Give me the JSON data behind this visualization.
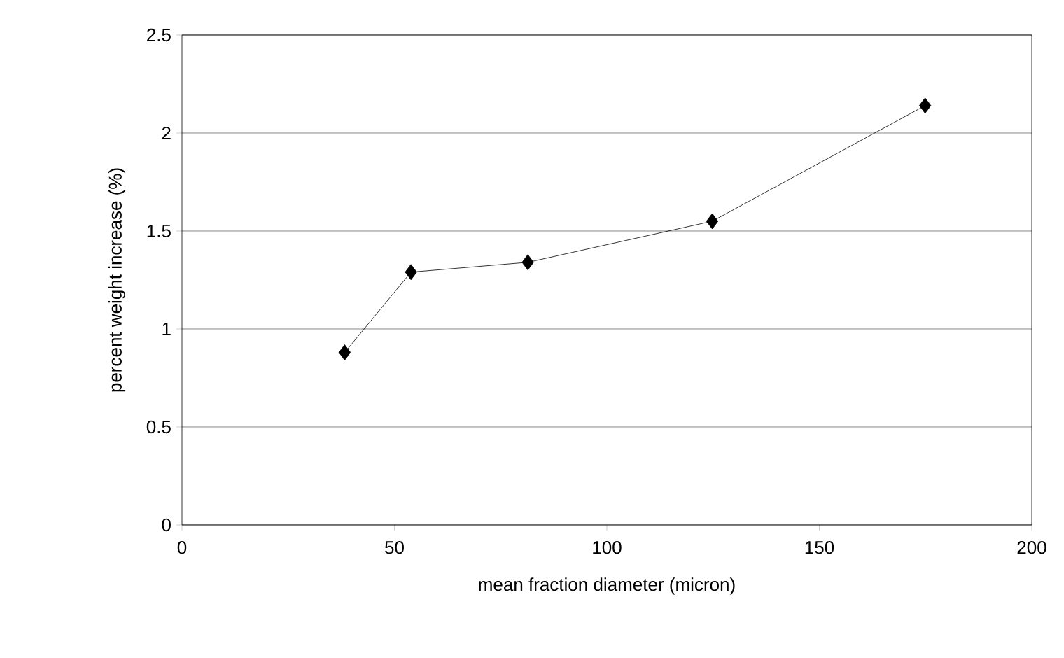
{
  "chart_data": {
    "type": "line",
    "xlabel": "mean fraction diameter (micron)",
    "ylabel": "percent weight increase (%)",
    "x": [
      38.3,
      53.9,
      81.4,
      124.8,
      174.9
    ],
    "series": [
      {
        "color": "#000000",
        "values": [
          0.88,
          1.29,
          1.34,
          1.55,
          2.14
        ]
      }
    ],
    "xlim": [
      0,
      200
    ],
    "xticks": [
      0,
      50,
      100,
      150,
      200
    ],
    "ylim": [
      0,
      2.5
    ],
    "yticks": [
      0,
      {
        "value": 0.5,
        "label": "0.5"
      },
      1,
      {
        "value": 1.5,
        "label": "1.5"
      },
      2,
      {
        "value": 2.5,
        "label": "2.5"
      }
    ],
    "grid": "y",
    "marker": "diamond",
    "line_style": "solid"
  }
}
